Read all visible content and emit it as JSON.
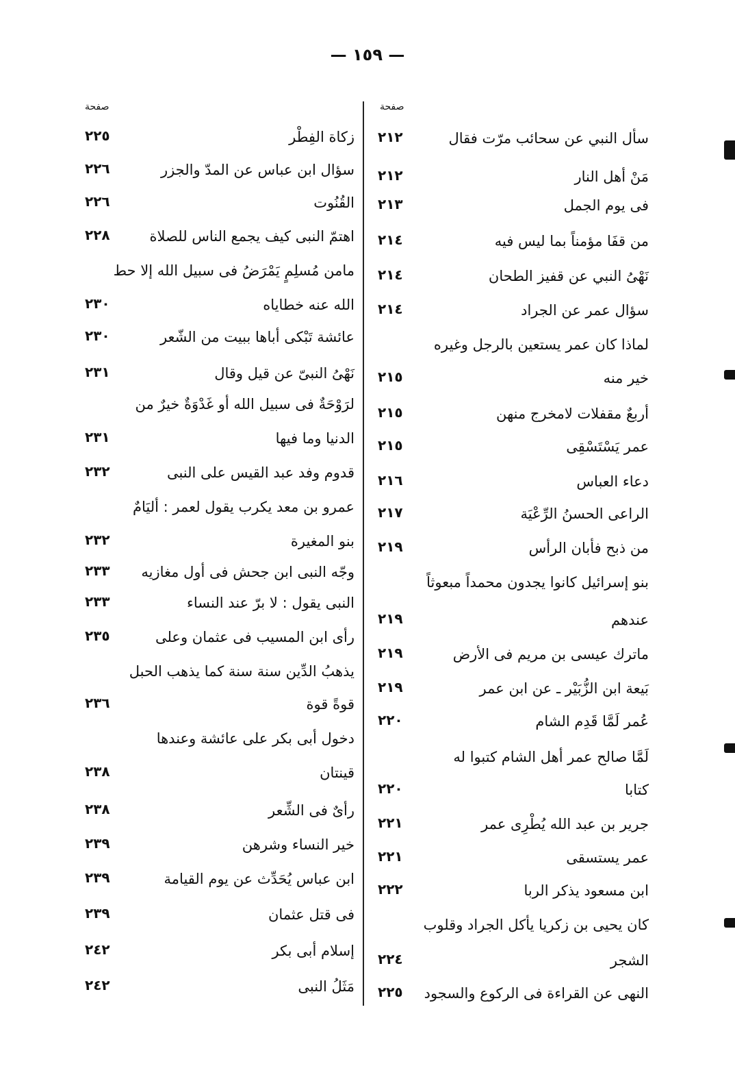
{
  "page_number": "— ١٥٩ —",
  "column_header": "صفحة",
  "right_column": [
    {
      "title": "سأل النبي عن سحائب مرّت فقال",
      "page": "٢١٢"
    },
    {
      "title": "مَنْ أهل النار",
      "page": "٢١٢"
    },
    {
      "title": "فى يوم الجمل",
      "page": "٢١٣"
    },
    {
      "title": "من قفَا مؤمناً بما ليس فيه",
      "page": "٢١٤"
    },
    {
      "title": "نَهْىُ النبي عن قفيز الطحان",
      "page": "٢١٤"
    },
    {
      "title": "سؤال عمر عن الجراد",
      "page": "٢١٤"
    },
    {
      "title": "لماذا كان عمر يستعين بالرجل وغيره",
      "page": ""
    },
    {
      "title": "خير منه",
      "page": "٢١٥"
    },
    {
      "title": "أربعٌ مقفلات لامخرج منهن",
      "page": "٢١٥"
    },
    {
      "title": "عمر يَسْتَسْقِى",
      "page": "٢١٥"
    },
    {
      "title": "دعاء العباس",
      "page": "٢١٦"
    },
    {
      "title": "الراعى الحسنُ الرِّعْيَة",
      "page": "٢١٧"
    },
    {
      "title": "من ذبح فأبان الرأس",
      "page": "٢١٩"
    },
    {
      "title": "بنو إسرائيل كانوا يجدون محمداً مبعوثاً",
      "page": ""
    },
    {
      "title": "عندهم",
      "page": "٢١٩"
    },
    {
      "title": "ماترك عيسى بن مريم فى الأرض",
      "page": "٢١٩"
    },
    {
      "title": "بَيعة ابن الزُّبَيْر ـ عن ابن عمر",
      "page": "٢١٩"
    },
    {
      "title": "عُمر لَمَّا قَدِم الشام",
      "page": "٢٢٠"
    },
    {
      "title": "لَمَّا صالح عمر أهل الشام كتبوا له",
      "page": ""
    },
    {
      "title": "كتابا",
      "page": "٢٢٠"
    },
    {
      "title": "جرير بن عبد الله يُطْرِى عمر",
      "page": "٢٢١"
    },
    {
      "title": "عمر يستسقى",
      "page": "٢٢١"
    },
    {
      "title": "ابن مسعود يذكر الربا",
      "page": "٢٢٢"
    },
    {
      "title": "كان يحيى بن زكريا يأكل الجراد وقلوب",
      "page": ""
    },
    {
      "title": "الشجر",
      "page": "٢٢٤"
    },
    {
      "title": "النهى عن القراءة فى الركوع والسجود",
      "page": "٢٢٥"
    }
  ],
  "left_column": [
    {
      "title": "زكاة الفِطْر",
      "page": "٢٢٥"
    },
    {
      "title": "سؤال ابن عباس عن المدّ والجزر",
      "page": "٢٢٦"
    },
    {
      "title": "القُنُوت",
      "page": "٢٢٦"
    },
    {
      "title": "اهتمّ النبى كيف يجمع الناس للصلاة",
      "page": "٢٢٨"
    },
    {
      "title": "مامن مُسلِمٍ يَمْرَضُ فى سبيل الله إلا حط",
      "page": ""
    },
    {
      "title": "الله عنه خطاياه",
      "page": "٢٣٠"
    },
    {
      "title": "عائشة تَبْكى أباها ببيت من الشّعر",
      "page": "٢٣٠"
    },
    {
      "title": "نَهْىُ النبىّ عن قيل وقال",
      "page": "٢٣١"
    },
    {
      "title": "لرَوْحَةٌ فى سبيل الله أو غَدْوَةٌ خيرٌ من",
      "page": ""
    },
    {
      "title": "الدنيا وما فيها",
      "page": "٢٣١"
    },
    {
      "title": "قدوم وفد عبد القيس على النبى",
      "page": "٢٣٢"
    },
    {
      "title": "عمرو بن معد يكرب يقول لعمر : أليَامٌ",
      "page": ""
    },
    {
      "title": "بنو المغيرة",
      "page": "٢٣٢"
    },
    {
      "title": "وجّه النبى ابن جحش فى أول مغازيه",
      "page": "٢٣٣"
    },
    {
      "title": "النبى يقول : لا برّ عند النساء",
      "page": "٢٣٣"
    },
    {
      "title": "رأى ابن المسيب فى عثمان وعلى",
      "page": "٢٣٥"
    },
    {
      "title": "يذهبُ الدِّين سنة سنة كما يذهب الحبل",
      "page": ""
    },
    {
      "title": "قوةً قوة",
      "page": "٢٣٦"
    },
    {
      "title": "دخول أبى بكر على عائشة وعندها",
      "page": ""
    },
    {
      "title": "قينتان",
      "page": "٢٣٨"
    },
    {
      "title": "رأىٌ فى الشِّعر",
      "page": "٢٣٨"
    },
    {
      "title": "خير النساء وشرهن",
      "page": "٢٣٩"
    },
    {
      "title": "ابن عباس يُحَدِّث عن يوم القيامة",
      "page": "٢٣٩"
    },
    {
      "title": "فى قتل عثمان",
      "page": "٢٣٩"
    },
    {
      "title": "إسلام أبى بكر",
      "page": "٢٤٢"
    },
    {
      "title": "مَثَلُ النبى",
      "page": "٢٤٢"
    }
  ]
}
